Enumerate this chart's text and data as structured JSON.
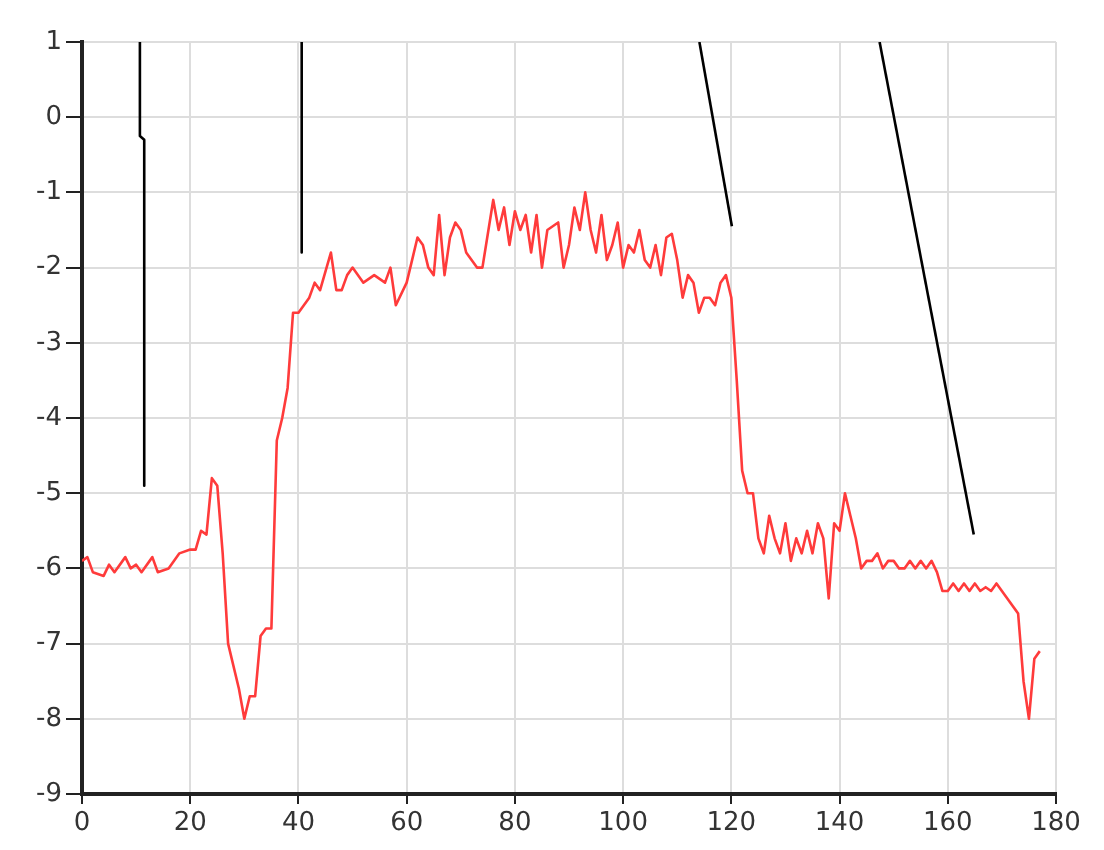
{
  "chart_data": {
    "type": "line",
    "grid": true,
    "marker": "none",
    "line_style": "solid",
    "legend": false,
    "xlim": [
      0,
      180
    ],
    "xticks": [
      0,
      20,
      40,
      60,
      80,
      100,
      120,
      140,
      160,
      180
    ],
    "ylim": [
      -9,
      1
    ],
    "yticks": [
      -9,
      -8,
      -7,
      -6,
      -5,
      -4,
      -3,
      -2,
      -1,
      0,
      1
    ],
    "series": [
      {
        "color": "#ff3b3b",
        "x": [
          0,
          1,
          2,
          4,
          5,
          6,
          8,
          9,
          10,
          11,
          13,
          14,
          16,
          18,
          20,
          21,
          22,
          23,
          24,
          25,
          26,
          27,
          29,
          30,
          31,
          32,
          33,
          34,
          35,
          36,
          37,
          38,
          39,
          40,
          41,
          42,
          43,
          44,
          46,
          47,
          48,
          49,
          50,
          52,
          54,
          56,
          57,
          58,
          60,
          61,
          62,
          63,
          64,
          65,
          66,
          67,
          68,
          69,
          70,
          71,
          72,
          73,
          74,
          76,
          77,
          78,
          79,
          80,
          81,
          82,
          83,
          84,
          85,
          86,
          88,
          89,
          90,
          91,
          92,
          93,
          94,
          95,
          96,
          97,
          98,
          99,
          100,
          101,
          102,
          103,
          104,
          105,
          106,
          107,
          108,
          109,
          110,
          111,
          112,
          113,
          114,
          115,
          116,
          117,
          118,
          119,
          120,
          121,
          122,
          123,
          124,
          125,
          126,
          127,
          128,
          129,
          130,
          131,
          132,
          133,
          134,
          135,
          136,
          137,
          138,
          139,
          140,
          141,
          142,
          143,
          144,
          145,
          146,
          147,
          148,
          149,
          150,
          151,
          152,
          153,
          154,
          155,
          156,
          157,
          158,
          159,
          160,
          161,
          162,
          163,
          164,
          165,
          166,
          167,
          168,
          169,
          170,
          171,
          172,
          173,
          174,
          175,
          176,
          177
        ],
        "values": [
          -5.9,
          -5.85,
          -6.05,
          -6.1,
          -5.95,
          -6.05,
          -5.85,
          -6.0,
          -5.95,
          -6.05,
          -5.85,
          -6.05,
          -6.0,
          -5.8,
          -5.75,
          -5.75,
          -5.5,
          -5.55,
          -4.8,
          -4.9,
          -5.8,
          -7.0,
          -7.6,
          -8.0,
          -7.7,
          -7.7,
          -6.9,
          -6.8,
          -6.8,
          -4.3,
          -4.0,
          -3.6,
          -2.6,
          -2.6,
          -2.5,
          -2.4,
          -2.2,
          -2.3,
          -1.8,
          -2.3,
          -2.3,
          -2.1,
          -2.0,
          -2.2,
          -2.1,
          -2.2,
          -2.0,
          -2.5,
          -2.2,
          -1.9,
          -1.6,
          -1.7,
          -2.0,
          -2.1,
          -1.3,
          -2.1,
          -1.6,
          -1.4,
          -1.5,
          -1.8,
          -1.9,
          -2.0,
          -2.0,
          -1.1,
          -1.5,
          -1.2,
          -1.7,
          -1.25,
          -1.5,
          -1.3,
          -1.8,
          -1.3,
          -2.0,
          -1.5,
          -1.4,
          -2.0,
          -1.7,
          -1.2,
          -1.5,
          -1.0,
          -1.5,
          -1.8,
          -1.3,
          -1.9,
          -1.7,
          -1.4,
          -2.0,
          -1.7,
          -1.8,
          -1.5,
          -1.9,
          -2.0,
          -1.7,
          -2.1,
          -1.6,
          -1.55,
          -1.9,
          -2.4,
          -2.1,
          -2.2,
          -2.6,
          -2.4,
          -2.4,
          -2.5,
          -2.2,
          -2.1,
          -2.4,
          -3.5,
          -4.7,
          -5.0,
          -5.0,
          -5.6,
          -5.8,
          -5.3,
          -5.6,
          -5.8,
          -5.4,
          -5.9,
          -5.6,
          -5.8,
          -5.5,
          -5.8,
          -5.4,
          -5.6,
          -6.4,
          -5.4,
          -5.5,
          -5.0,
          -5.3,
          -5.6,
          -6.0,
          -5.9,
          -5.9,
          -5.8,
          -6.0,
          -5.9,
          -5.9,
          -6.0,
          -6.0,
          -5.9,
          -6.0,
          -5.9,
          -6.0,
          -5.9,
          -6.05,
          -6.3,
          -6.3,
          -6.2,
          -6.3,
          -6.2,
          -6.3,
          -6.2,
          -6.3,
          -6.25,
          -6.3,
          -6.2,
          -6.3,
          -6.4,
          -6.5,
          -6.6,
          -7.5,
          -8.0,
          -7.2,
          -7.1
        ]
      },
      {
        "color": "#000000",
        "x": [
          10.7,
          10.7,
          11.5,
          11.5
        ],
        "values": [
          1,
          -0.25,
          -0.3,
          -4.9
        ]
      },
      {
        "color": "#000000",
        "x": [
          40.6,
          40.6
        ],
        "values": [
          1,
          -1.8
        ]
      },
      {
        "color": "#000000",
        "x": [
          114.1,
          120.1
        ],
        "values": [
          1,
          -1.45
        ]
      },
      {
        "color": "#000000",
        "x": [
          147.4,
          164.8
        ],
        "values": [
          1,
          -5.55
        ]
      }
    ]
  }
}
